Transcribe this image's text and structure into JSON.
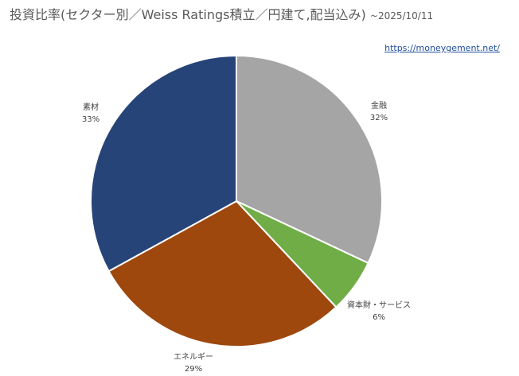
{
  "header": {
    "title": "投資比率(セクター別／Weiss Ratings積立／円建て,配当込み)",
    "date": "~2025/10/11"
  },
  "source_link": "https://moneygement.net/",
  "chart_data": {
    "type": "pie",
    "title": "投資比率(セクター別／Weiss Ratings積立／円建て,配当込み)",
    "slices": [
      {
        "name": "金融",
        "value": 32,
        "label": "32%",
        "color": "#a5a5a5"
      },
      {
        "name": "資本財・サービス",
        "value": 6,
        "label": "6%",
        "color": "#70ad47"
      },
      {
        "name": "エネルギー",
        "value": 29,
        "label": "29%",
        "color": "#9e480e"
      },
      {
        "name": "素材",
        "value": 33,
        "label": "33%",
        "color": "#264478"
      }
    ]
  }
}
